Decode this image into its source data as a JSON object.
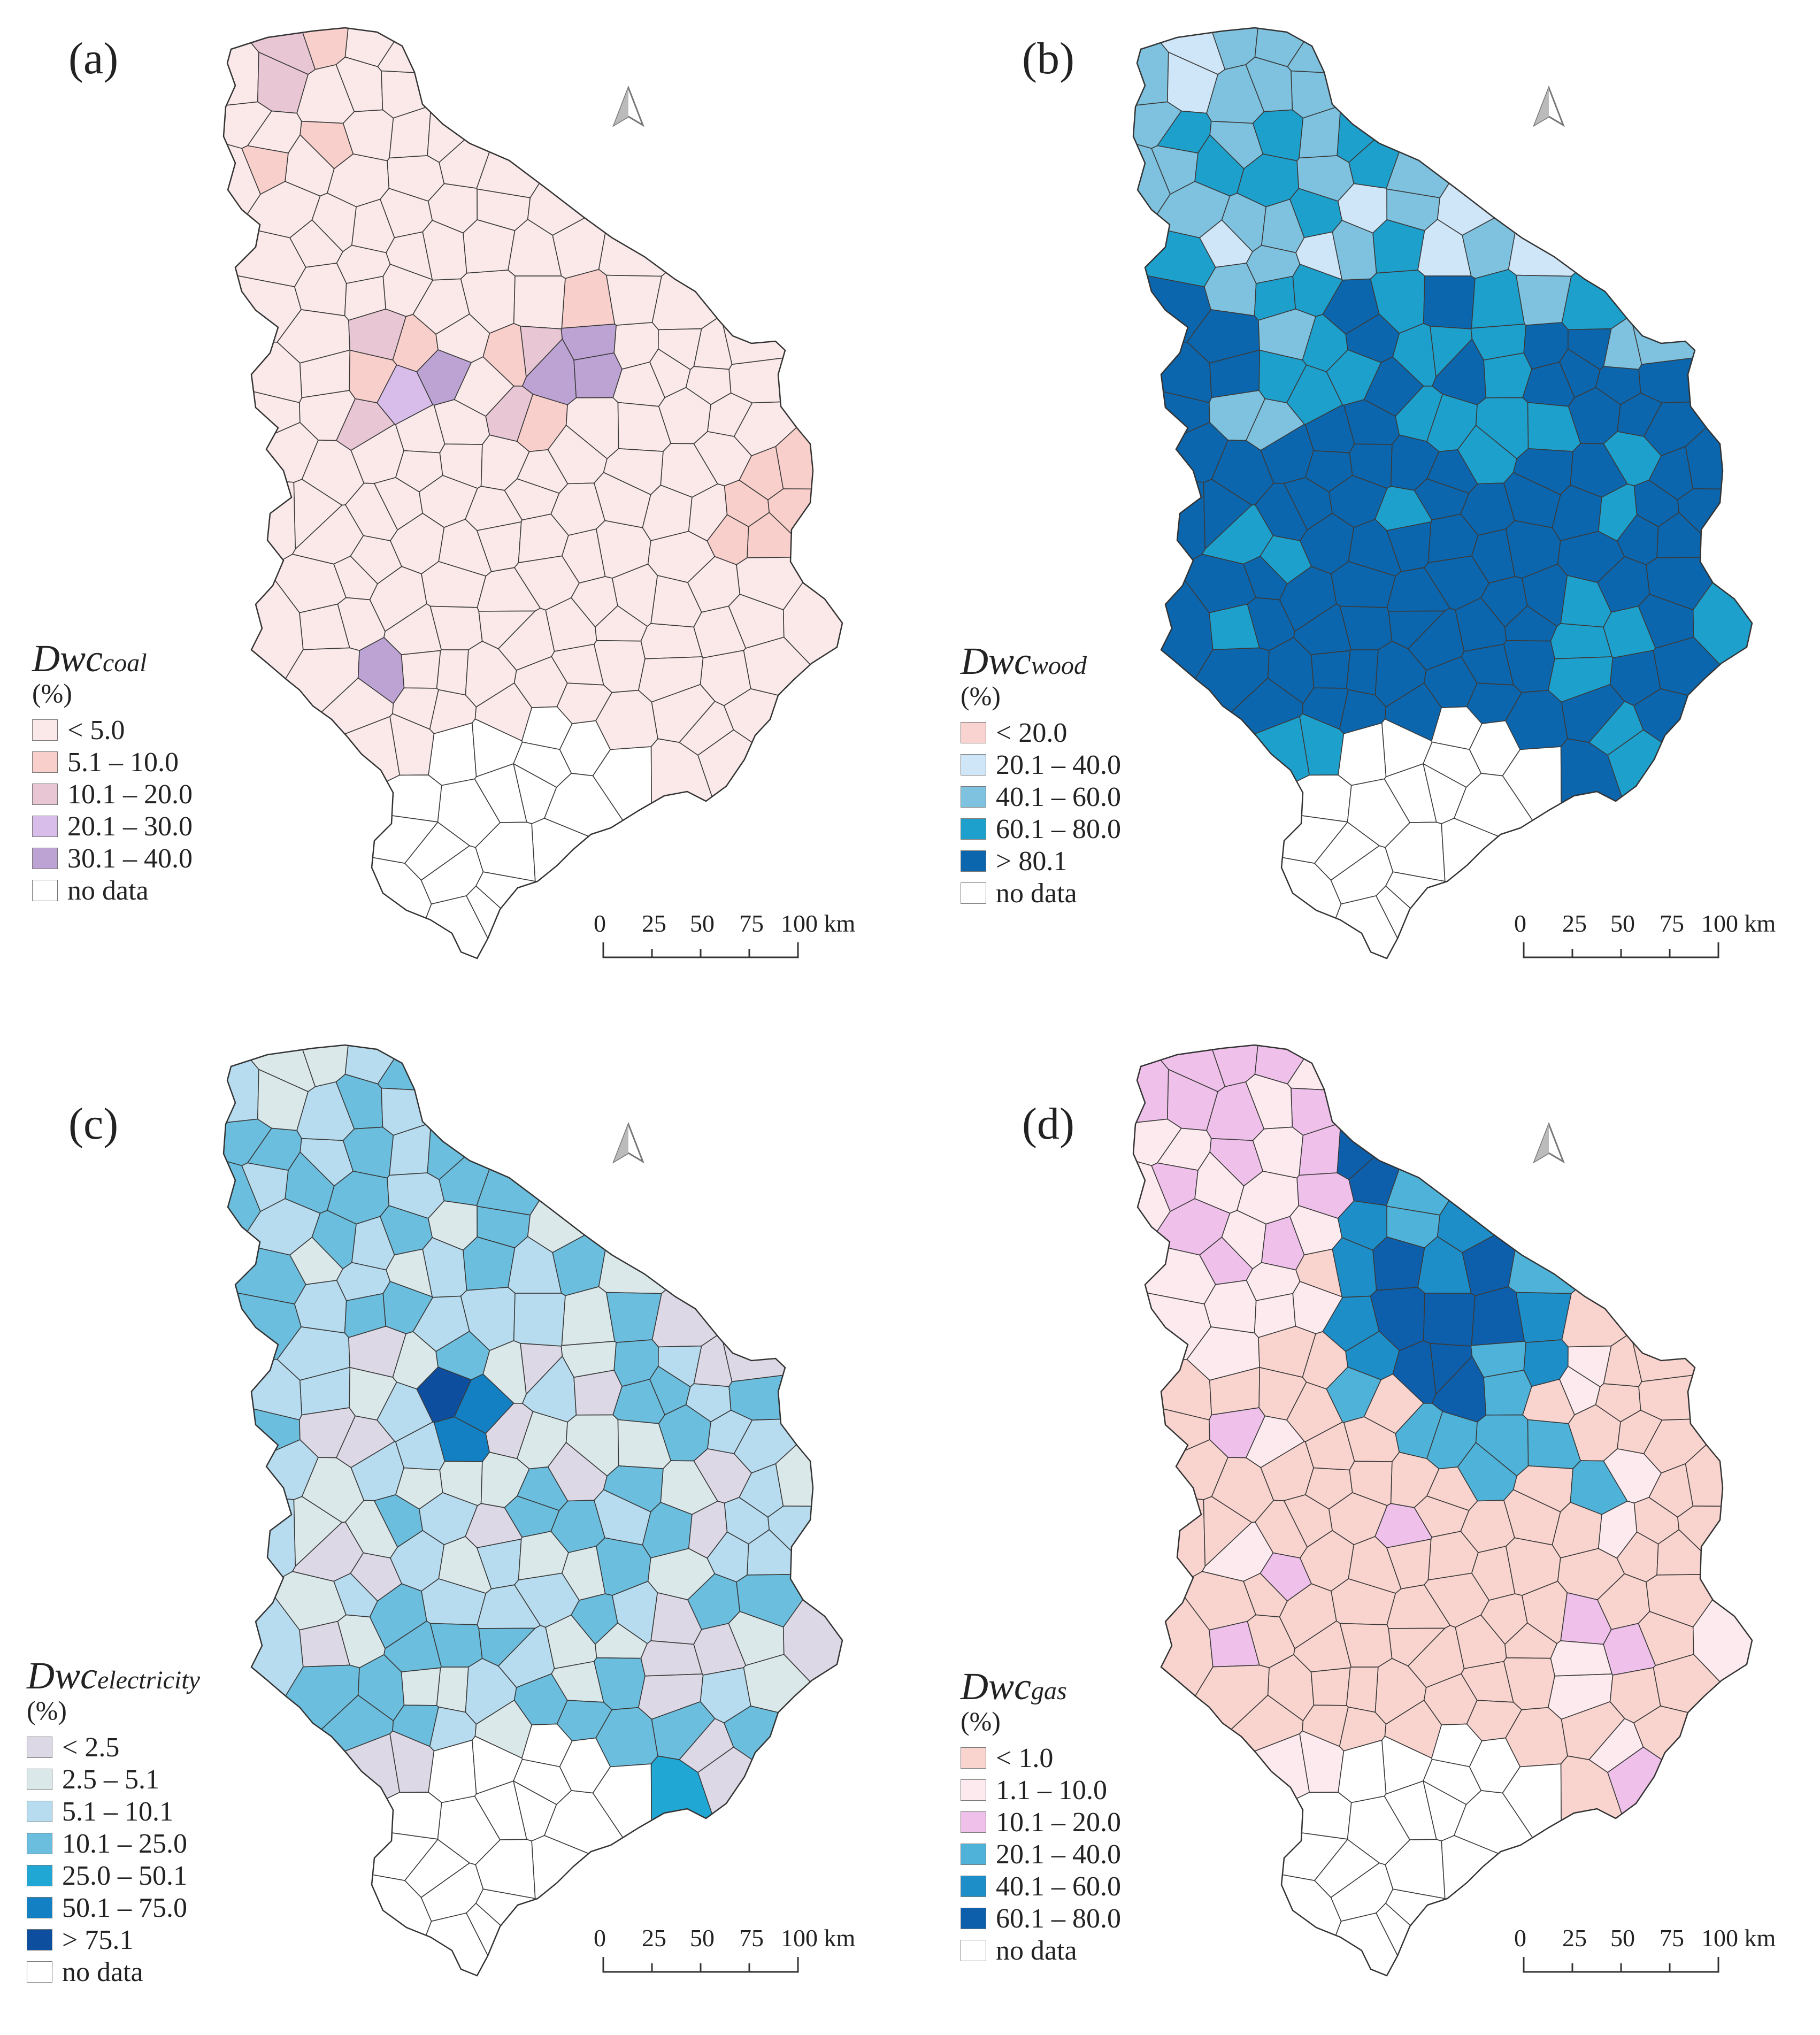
{
  "scale_labels": [
    "0",
    "25",
    "50",
    "75",
    "100 km"
  ],
  "panels": [
    {
      "label": "(a)",
      "legend_title_main": "Dwc",
      "legend_title_sub": "coal",
      "legend_unit": "(%)",
      "classes": [
        {
          "label": "< 5.0",
          "color": "#fbe9ea"
        },
        {
          "label": "5.1 – 10.0",
          "color": "#f8cfcb"
        },
        {
          "label": "10.1 – 20.0",
          "color": "#e8c6d4"
        },
        {
          "label": "20.1 – 30.0",
          "color": "#d8bdeb"
        },
        {
          "label": "30.1 – 40.0",
          "color": "#bda3d3"
        },
        {
          "label": "no data",
          "color": "#ffffff"
        }
      ]
    },
    {
      "label": "(b)",
      "legend_title_main": "Dwc",
      "legend_title_sub": "wood",
      "legend_unit": "(%)",
      "classes": [
        {
          "label": "< 20.0",
          "color": "#f9d3d0"
        },
        {
          "label": "20.1 – 40.0",
          "color": "#cfe6f8"
        },
        {
          "label": "40.1 – 60.0",
          "color": "#7ec2df"
        },
        {
          "label": " 60.1 – 80.0",
          "color": "#1ea0cd"
        },
        {
          "label": "> 80.1",
          "color": "#0c66ad"
        },
        {
          "label": "no data",
          "color": "#ffffff"
        }
      ]
    },
    {
      "label": "(c)",
      "legend_title_main": "Dwc",
      "legend_title_sub": "electricity",
      "legend_unit": "(%)",
      "classes": [
        {
          "label": "< 2.5",
          "color": "#dcd8e5"
        },
        {
          "label": "2.5 – 5.1",
          "color": "#dbe8ea"
        },
        {
          "label": "5.1 – 10.1",
          "color": "#b8dcef"
        },
        {
          "label": "10.1 – 25.0",
          "color": "#6bbede"
        },
        {
          "label": "25.0 – 50.1",
          "color": "#20a7d3"
        },
        {
          "label": "50.1 – 75.0",
          "color": "#1280c2"
        },
        {
          "label": "> 75.1",
          "color": "#0d4f9e"
        },
        {
          "label": "no data",
          "color": "#ffffff"
        }
      ]
    },
    {
      "label": "(d)",
      "legend_title_main": "Dwc",
      "legend_title_sub": "gas",
      "legend_unit": "(%)",
      "classes": [
        {
          "label": "< 1.0",
          "color": "#f9d4cf"
        },
        {
          "label": "1.1 – 10.0",
          "color": "#fdeaee"
        },
        {
          "label": "10.1 – 20.0",
          "color": "#efc1ea"
        },
        {
          "label": "20.1 – 40.0",
          "color": "#4fb3d9"
        },
        {
          "label": "40.1 – 60.0",
          "color": "#1e8ec9"
        },
        {
          "label": "60.1 – 80.0",
          "color": "#0d5fab"
        },
        {
          "label": "no data",
          "color": "#ffffff"
        }
      ]
    }
  ]
}
